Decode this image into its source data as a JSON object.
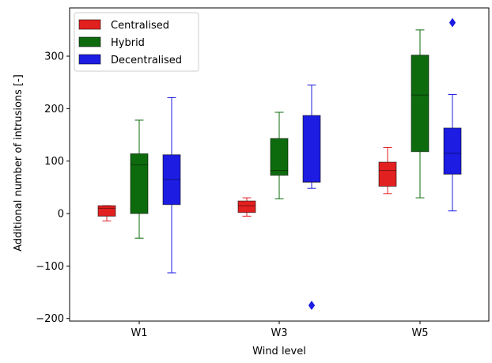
{
  "chart_data": {
    "type": "box",
    "xlabel": "Wind level",
    "ylabel": "Additional number of intrusions [-]",
    "ylim": [
      -205,
      392
    ],
    "y_ticks": [
      -200,
      -100,
      0,
      100,
      200,
      300
    ],
    "y_tick_labels": [
      "−200",
      "−100",
      "0",
      "100",
      "200",
      "300"
    ],
    "categories": [
      "W1",
      "W3",
      "W5"
    ],
    "legend_position": "top-left",
    "series": [
      {
        "name": "Centralised",
        "color": "#e32020",
        "boxes": [
          {
            "whislo": -14,
            "q1": -5,
            "median": 10,
            "q3": 15,
            "whishi": 15,
            "fliers": []
          },
          {
            "whislo": -5,
            "q1": 2,
            "median": 15,
            "q3": 24,
            "whishi": 30,
            "fliers": []
          },
          {
            "whislo": 38,
            "q1": 52,
            "median": 82,
            "q3": 98,
            "whishi": 126,
            "fliers": []
          }
        ]
      },
      {
        "name": "Hybrid",
        "color": "#0d6b0d",
        "boxes": [
          {
            "whislo": -47,
            "q1": 0,
            "median": 93,
            "q3": 114,
            "whishi": 178,
            "fliers": []
          },
          {
            "whislo": 28,
            "q1": 73,
            "median": 82,
            "q3": 143,
            "whishi": 193,
            "fliers": []
          },
          {
            "whislo": 30,
            "q1": 118,
            "median": 226,
            "q3": 302,
            "whishi": 350,
            "fliers": []
          }
        ]
      },
      {
        "name": "Decentralised",
        "color": "#1c1ce3",
        "boxes": [
          {
            "whislo": -113,
            "q1": 17,
            "median": 65,
            "q3": 112,
            "whishi": 221,
            "fliers": []
          },
          {
            "whislo": 48,
            "q1": 60,
            "median": 60,
            "q3": 187,
            "whishi": 245,
            "fliers": [
              -175
            ]
          },
          {
            "whislo": 5,
            "q1": 75,
            "median": 115,
            "q3": 163,
            "whishi": 227,
            "fliers": [
              364
            ]
          }
        ]
      }
    ]
  }
}
